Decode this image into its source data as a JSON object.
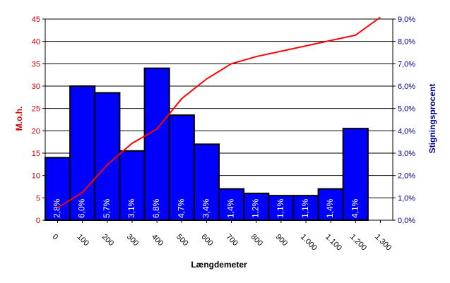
{
  "chart_data": {
    "type": "bar",
    "x_axis": {
      "label": "Længdemeter",
      "ticks": [
        "0",
        "100",
        "200",
        "300",
        "400",
        "500",
        "600",
        "700",
        "800",
        "900",
        "1.000",
        "1.100",
        "1.200",
        "1.300"
      ]
    },
    "y_left": {
      "label": "M.o.h.",
      "ylim": [
        0,
        45
      ],
      "ticks": [
        "0",
        "5",
        "10",
        "15",
        "20",
        "25",
        "30",
        "35",
        "40",
        "45"
      ],
      "color": "#cc0000"
    },
    "y_right": {
      "label": "Stigningsprocent",
      "ylim": [
        0,
        9
      ],
      "ticks": [
        "0,0%",
        "1,0%",
        "2,0%",
        "3,0%",
        "4,0%",
        "5,0%",
        "6,0%",
        "7,0%",
        "8,0%",
        "9,0%"
      ],
      "color": "#00008b"
    },
    "bars": {
      "axis": "right",
      "color": "#0000ff",
      "values": [
        2.8,
        6.0,
        5.7,
        3.1,
        6.8,
        4.7,
        3.4,
        1.4,
        1.2,
        1.1,
        1.1,
        1.4,
        4.1
      ],
      "labels": [
        "2,8%",
        "6,0%",
        "5,7%",
        "3,1%",
        "6,8%",
        "4,7%",
        "3,4%",
        "1,4%",
        "1,2%",
        "1,1%",
        "1,1%",
        "1,4%",
        "4,1%"
      ]
    },
    "line": {
      "axis": "left",
      "color": "#ff0000",
      "x": [
        0,
        100,
        200,
        300,
        400,
        500,
        600,
        700,
        800,
        900,
        1000,
        1100,
        1200,
        1300
      ],
      "y": [
        2.8,
        6.2,
        12.4,
        17.2,
        20.4,
        27.2,
        31.6,
        35.0,
        36.6,
        37.8,
        39.0,
        40.2,
        41.4,
        45.4
      ]
    },
    "grid": true,
    "legend": "none"
  }
}
